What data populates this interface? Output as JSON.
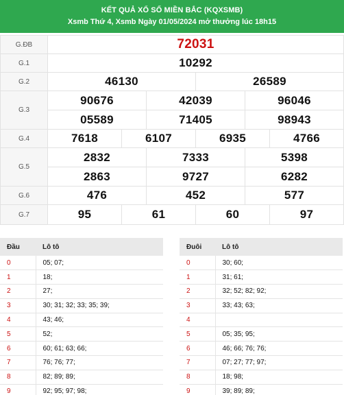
{
  "header": {
    "title": "KẾT QUẢ XỔ SỐ MIỀN BẮC (KQXSMB)",
    "subtitle": "Xsmb Thứ 4, Xsmb Ngày 01/05/2024 mở thưởng lúc 18h15"
  },
  "prizes": {
    "db": {
      "label": "G.ĐB",
      "numbers": [
        "72031"
      ]
    },
    "g1": {
      "label": "G.1",
      "numbers": [
        "10292"
      ]
    },
    "g2": {
      "label": "G.2",
      "numbers": [
        "46130",
        "26589"
      ]
    },
    "g3": {
      "label": "G.3",
      "numbers": [
        "90676",
        "42039",
        "96046",
        "05589",
        "71405",
        "98943"
      ]
    },
    "g4": {
      "label": "G.4",
      "numbers": [
        "7618",
        "6107",
        "6935",
        "4766"
      ]
    },
    "g5": {
      "label": "G.5",
      "numbers": [
        "2832",
        "7333",
        "5398",
        "2863",
        "9727",
        "6282"
      ]
    },
    "g6": {
      "label": "G.6",
      "numbers": [
        "476",
        "452",
        "577"
      ]
    },
    "g7": {
      "label": "G.7",
      "numbers": [
        "95",
        "61",
        "60",
        "97"
      ]
    }
  },
  "loto_head": {
    "col1": "Đầu",
    "col2": "Lô tô",
    "rows": [
      {
        "key": "0",
        "vals": "05; 07;"
      },
      {
        "key": "1",
        "vals": "18;"
      },
      {
        "key": "2",
        "vals": "27;"
      },
      {
        "key": "3",
        "vals": "30; 31; 32; 33; 35; 39;"
      },
      {
        "key": "4",
        "vals": "43; 46;"
      },
      {
        "key": "5",
        "vals": "52;"
      },
      {
        "key": "6",
        "vals": "60; 61; 63; 66;"
      },
      {
        "key": "7",
        "vals": "76; 76; 77;"
      },
      {
        "key": "8",
        "vals": "82; 89; 89;"
      },
      {
        "key": "9",
        "vals": "92; 95; 97; 98;"
      }
    ]
  },
  "loto_tail": {
    "col1": "Đuôi",
    "col2": "Lô tô",
    "rows": [
      {
        "key": "0",
        "vals": "30; 60;"
      },
      {
        "key": "1",
        "vals": "31; 61;"
      },
      {
        "key": "2",
        "vals": "32; 52; 82; 92;"
      },
      {
        "key": "3",
        "vals": "33; 43; 63;"
      },
      {
        "key": "4",
        "vals": ""
      },
      {
        "key": "5",
        "vals": "05; 35; 95;"
      },
      {
        "key": "6",
        "vals": "46; 66; 76; 76;"
      },
      {
        "key": "7",
        "vals": "07; 27; 77; 97;"
      },
      {
        "key": "8",
        "vals": "18; 98;"
      },
      {
        "key": "9",
        "vals": "39; 89; 89;"
      }
    ]
  }
}
